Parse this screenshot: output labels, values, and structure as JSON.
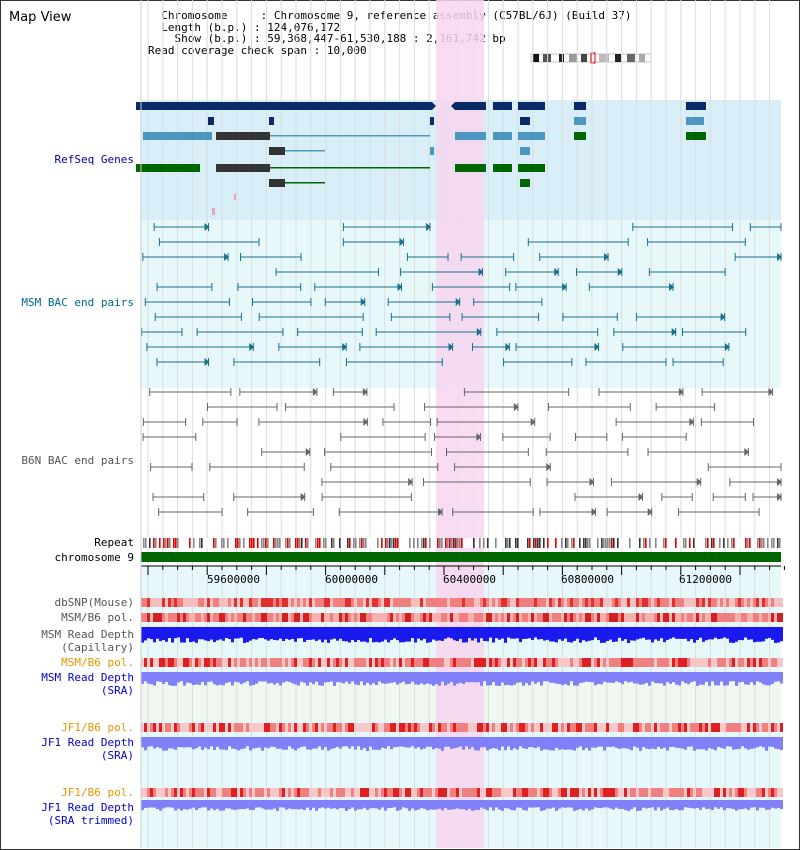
{
  "view": {
    "title": "Map View"
  },
  "info": {
    "chromosome_key": "Chromosome",
    "chromosome_val": "Chromosome 9, reference assembly (C57BL/6J) (Build 37)",
    "length_key": "Length (b.p.)",
    "length_val": "124,076,172",
    "show_key": "Show (b.p.)",
    "show_val": "59,368,447-61,530,188 : 2,161,742 bp",
    "span_key": "Read coverage check span",
    "span_val": "10,000"
  },
  "tracks": {
    "refseq": "RefSeq Genes",
    "msm_bac": "MSM BAC end pairs",
    "b6n_bac": "B6N BAC end pairs",
    "repeat": "Repeat",
    "chromosome": "chromosome 9",
    "dbsnp": "dbSNP(Mouse)",
    "msm_b6_pol": "MSM/B6 pol.",
    "msm_read_depth": "MSM Read Depth",
    "msm_read_depth_sub": "(Capillary)",
    "msm_b6_pol2": "MSM/B6 pol.",
    "msm_read_depth_sra": "MSM Read Depth",
    "msm_read_depth_sra_sub": "(SRA)",
    "jf1_b6_pol": "JF1/B6 pol.",
    "jf1_read_depth": "JF1 Read Depth",
    "jf1_read_depth_sub": "(SRA)",
    "jf1_b6_pol2": "JF1/B6 pol.",
    "jf1_read_depth_trim": "JF1 Read Depth",
    "jf1_read_depth_trim_sub": "(SRA trimmed)"
  },
  "axis": {
    "ticks": [
      "59600000",
      "60000000",
      "60400000",
      "60800000",
      "61200000"
    ]
  },
  "colors": {
    "gene_dark": "#0a2a66",
    "gene_mid": "#4d96c0",
    "gene_green": "#006600",
    "msm_bg": "#e6f8fa",
    "gene_bg": "#d8eef8",
    "highlight": "#f7d6f0",
    "msm_line": "#1a6f8a",
    "b6n_line": "#666666",
    "chromosome": "#006600",
    "pol_red": "#e04040",
    "depth_blue": "#1a1aee",
    "depth_light": "#8080f8"
  }
}
